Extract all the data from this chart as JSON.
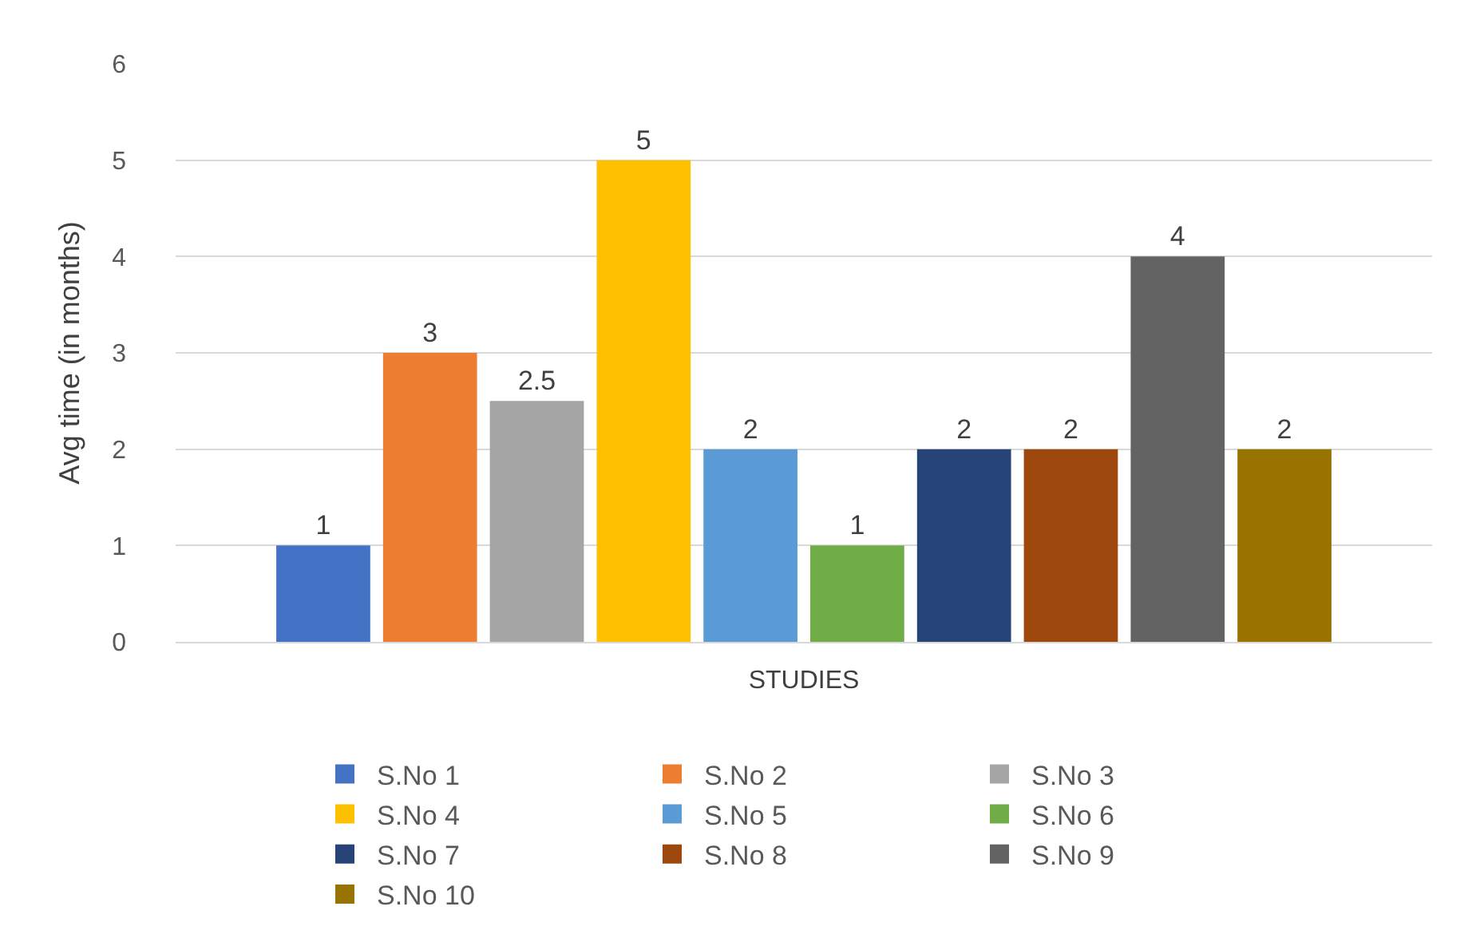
{
  "chart_data": {
    "type": "bar",
    "xlabel": "STUDIES",
    "ylabel": "Avg time (in months)",
    "categories": [
      null
    ],
    "series": [
      {
        "name": "S.No 1",
        "color": "#4472c4",
        "values": [
          1
        ]
      },
      {
        "name": "S.No 2",
        "color": "#ed7d31",
        "values": [
          3
        ]
      },
      {
        "name": "S.No 3",
        "color": "#a5a5a5",
        "values": [
          2.5
        ]
      },
      {
        "name": "S.No 4",
        "color": "#ffc000",
        "values": [
          5
        ]
      },
      {
        "name": "S.No 5",
        "color": "#5b9bd5",
        "values": [
          2
        ]
      },
      {
        "name": "S.No 6",
        "color": "#70ad47",
        "values": [
          1
        ]
      },
      {
        "name": "S.No 7",
        "color": "#264478",
        "values": [
          2
        ]
      },
      {
        "name": "S.No 8",
        "color": "#9e480e",
        "values": [
          2
        ]
      },
      {
        "name": "S.No 9",
        "color": "#636363",
        "values": [
          4
        ]
      },
      {
        "name": "S.No 10",
        "color": "#997300",
        "values": [
          2
        ]
      }
    ],
    "ylim": [
      0,
      6
    ],
    "yticks": [
      0,
      1,
      2,
      3,
      4,
      5,
      6
    ],
    "grid": "y",
    "legend": "bottom",
    "data_labels": true,
    "tick_labels": "y"
  }
}
